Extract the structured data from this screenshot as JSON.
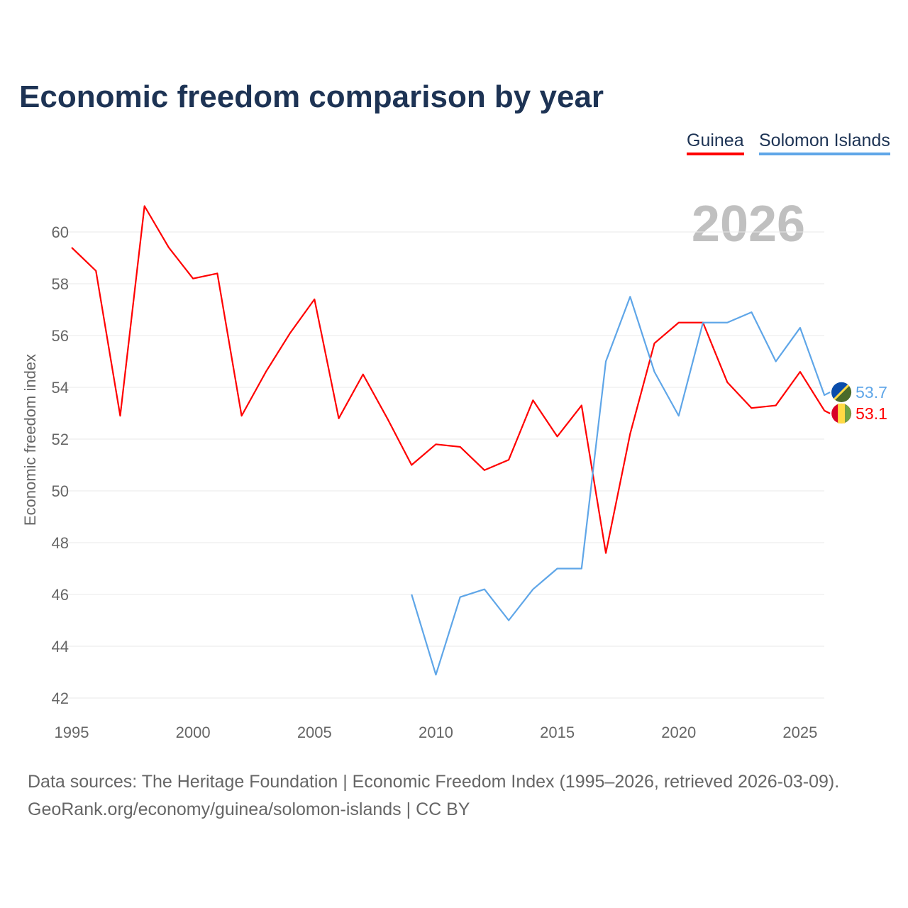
{
  "title": "Economic freedom comparison by year",
  "legend": [
    {
      "name": "Guinea",
      "color": "#ff0000"
    },
    {
      "name": "Solomon Islands",
      "color": "#5fa6e8"
    }
  ],
  "year_label": "2026",
  "footer": {
    "line1": "Data sources: The Heritage Foundation | Economic Freedom Index (1995–2026, retrieved 2026-03-09).",
    "line2": "GeoRank.org/economy/guinea/solomon-islands | CC BY"
  },
  "chart_data": {
    "type": "line",
    "title": "Economic freedom comparison by year",
    "xlabel": "",
    "ylabel": "Economic freedom index",
    "xlim": [
      1995,
      2026
    ],
    "ylim": [
      42,
      61
    ],
    "xticks": [
      1995,
      2000,
      2005,
      2010,
      2015,
      2020,
      2025
    ],
    "yticks": [
      42,
      44,
      46,
      48,
      50,
      52,
      54,
      56,
      58,
      60
    ],
    "grid": true,
    "legend_position": "top-right",
    "series": [
      {
        "name": "Guinea",
        "color": "#ff0000",
        "end_label": "53.1",
        "x": [
          1995,
          1996,
          1997,
          1998,
          1999,
          2000,
          2001,
          2002,
          2003,
          2004,
          2005,
          2006,
          2007,
          2008,
          2009,
          2010,
          2011,
          2012,
          2013,
          2014,
          2015,
          2016,
          2017,
          2018,
          2019,
          2020,
          2021,
          2022,
          2023,
          2024,
          2025,
          2026
        ],
        "y": [
          59.4,
          58.5,
          52.9,
          61.0,
          59.4,
          58.2,
          58.4,
          52.9,
          54.6,
          56.1,
          57.4,
          52.8,
          54.5,
          52.8,
          51.0,
          51.8,
          51.7,
          50.8,
          51.2,
          53.5,
          52.1,
          53.3,
          47.6,
          52.2,
          55.7,
          56.5,
          56.5,
          54.2,
          53.2,
          53.3,
          54.6,
          53.1
        ]
      },
      {
        "name": "Solomon Islands",
        "color": "#5fa6e8",
        "end_label": "53.7",
        "x": [
          2009,
          2010,
          2011,
          2012,
          2013,
          2014,
          2015,
          2016,
          2017,
          2018,
          2019,
          2020,
          2021,
          2022,
          2023,
          2024,
          2025,
          2026
        ],
        "y": [
          46.0,
          42.9,
          45.9,
          46.2,
          45.0,
          46.2,
          47.0,
          47.0,
          55.0,
          57.5,
          54.6,
          52.9,
          56.5,
          56.5,
          56.9,
          55.0,
          56.3,
          53.7
        ]
      }
    ]
  }
}
